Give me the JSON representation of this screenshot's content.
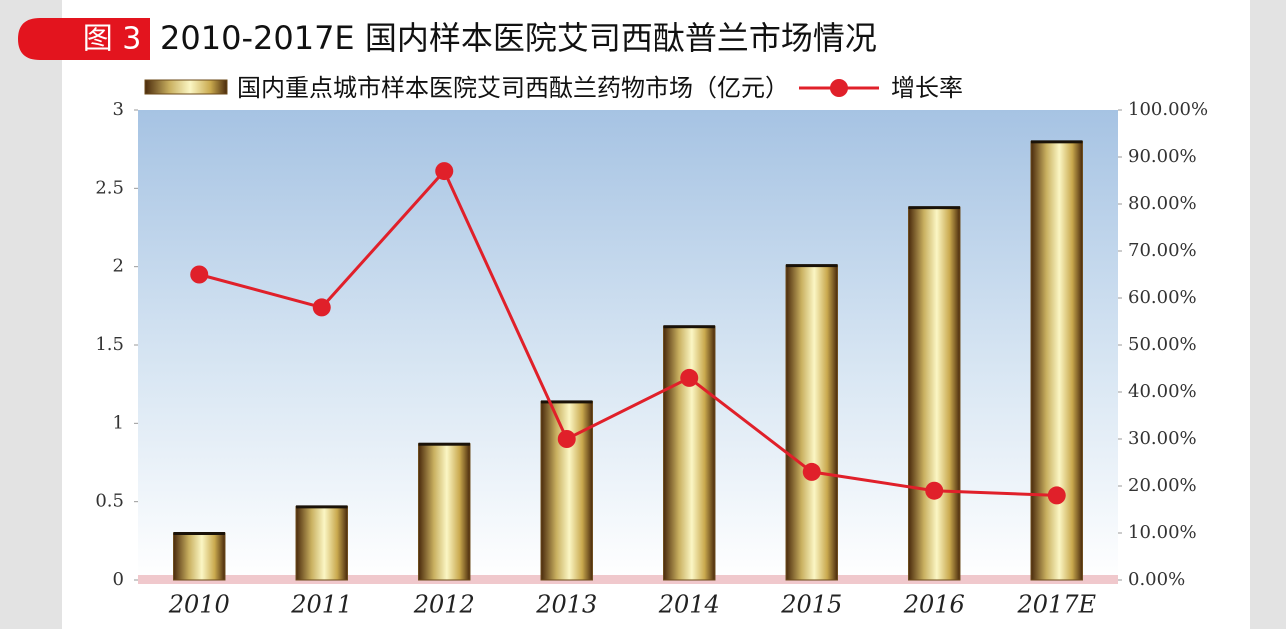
{
  "chart_data": {
    "type": "bar",
    "figure_label": "图 3",
    "title": "2010-2017E 国内样本医院艾司西酞普兰市场情况",
    "categories": [
      "2010",
      "2011",
      "2012",
      "2013",
      "2014",
      "2015",
      "2016",
      "2017E"
    ],
    "series": [
      {
        "name": "国内重点城市样本医院艾司西酞兰药物市场（亿元）",
        "color": "#6b4a1a",
        "type": "bar",
        "values": [
          0.3,
          0.47,
          0.87,
          1.14,
          1.62,
          2.01,
          2.38,
          2.8
        ]
      },
      {
        "name": "增长率",
        "color": "#e0202a",
        "type": "line",
        "axis": "y2",
        "values": [
          65,
          58,
          87,
          30,
          43,
          23,
          19,
          18
        ]
      }
    ],
    "ylim": [
      0,
      3
    ],
    "yticks": [
      0,
      0.5,
      1,
      1.5,
      2,
      2.5,
      3
    ],
    "y2lim": [
      0,
      100
    ],
    "y2ticks": [
      {
        "value": 0,
        "label": "0.00%"
      },
      {
        "value": 10,
        "label": "10.00%"
      },
      {
        "value": 20,
        "label": "20.00%"
      },
      {
        "value": 30,
        "label": "30.00%"
      },
      {
        "value": 40,
        "label": "40.00%"
      },
      {
        "value": 50,
        "label": "50.00%"
      },
      {
        "value": 60,
        "label": "60.00%"
      },
      {
        "value": 70,
        "label": "70.00%"
      },
      {
        "value": 80,
        "label": "80.00%"
      },
      {
        "value": 90,
        "label": "90.00%"
      },
      {
        "value": 100,
        "label": "100.00%"
      }
    ],
    "grid": false
  }
}
